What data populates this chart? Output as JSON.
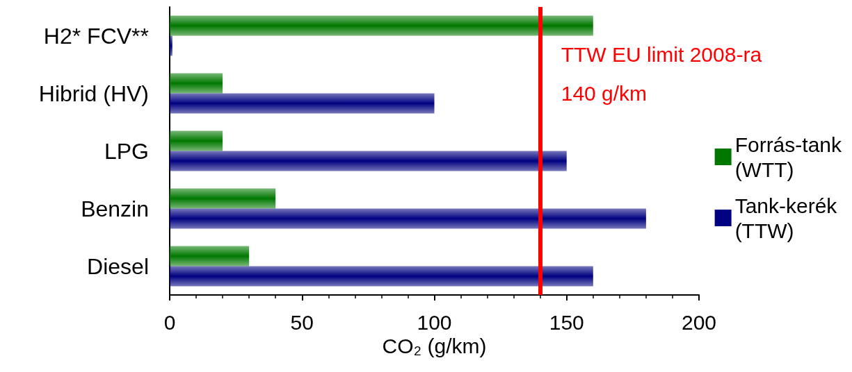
{
  "chart_data": {
    "type": "bar",
    "orientation": "horizontal",
    "xlabel": "CO₂ (g/km)",
    "categories": [
      "H2* FCV**",
      "Hibrid (HV)",
      "LPG",
      "Benzin",
      "Diesel"
    ],
    "series": [
      {
        "name": "Forrás-tank (WTT)",
        "color": "#007800",
        "values": [
          160,
          20,
          20,
          40,
          30
        ]
      },
      {
        "name": "Tank-kerék (TTW)",
        "color": "#000080",
        "values": [
          1,
          100,
          150,
          180,
          160
        ]
      }
    ],
    "xlim": [
      0,
      200
    ],
    "xticks": [
      0,
      50,
      100,
      150,
      200
    ],
    "ref_lines": [
      {
        "axis": "x",
        "value": 140,
        "label": "TTW EU limit 2008-ra 140 g/km",
        "color": "#ff0000"
      }
    ],
    "legend": "right",
    "grid": false
  }
}
